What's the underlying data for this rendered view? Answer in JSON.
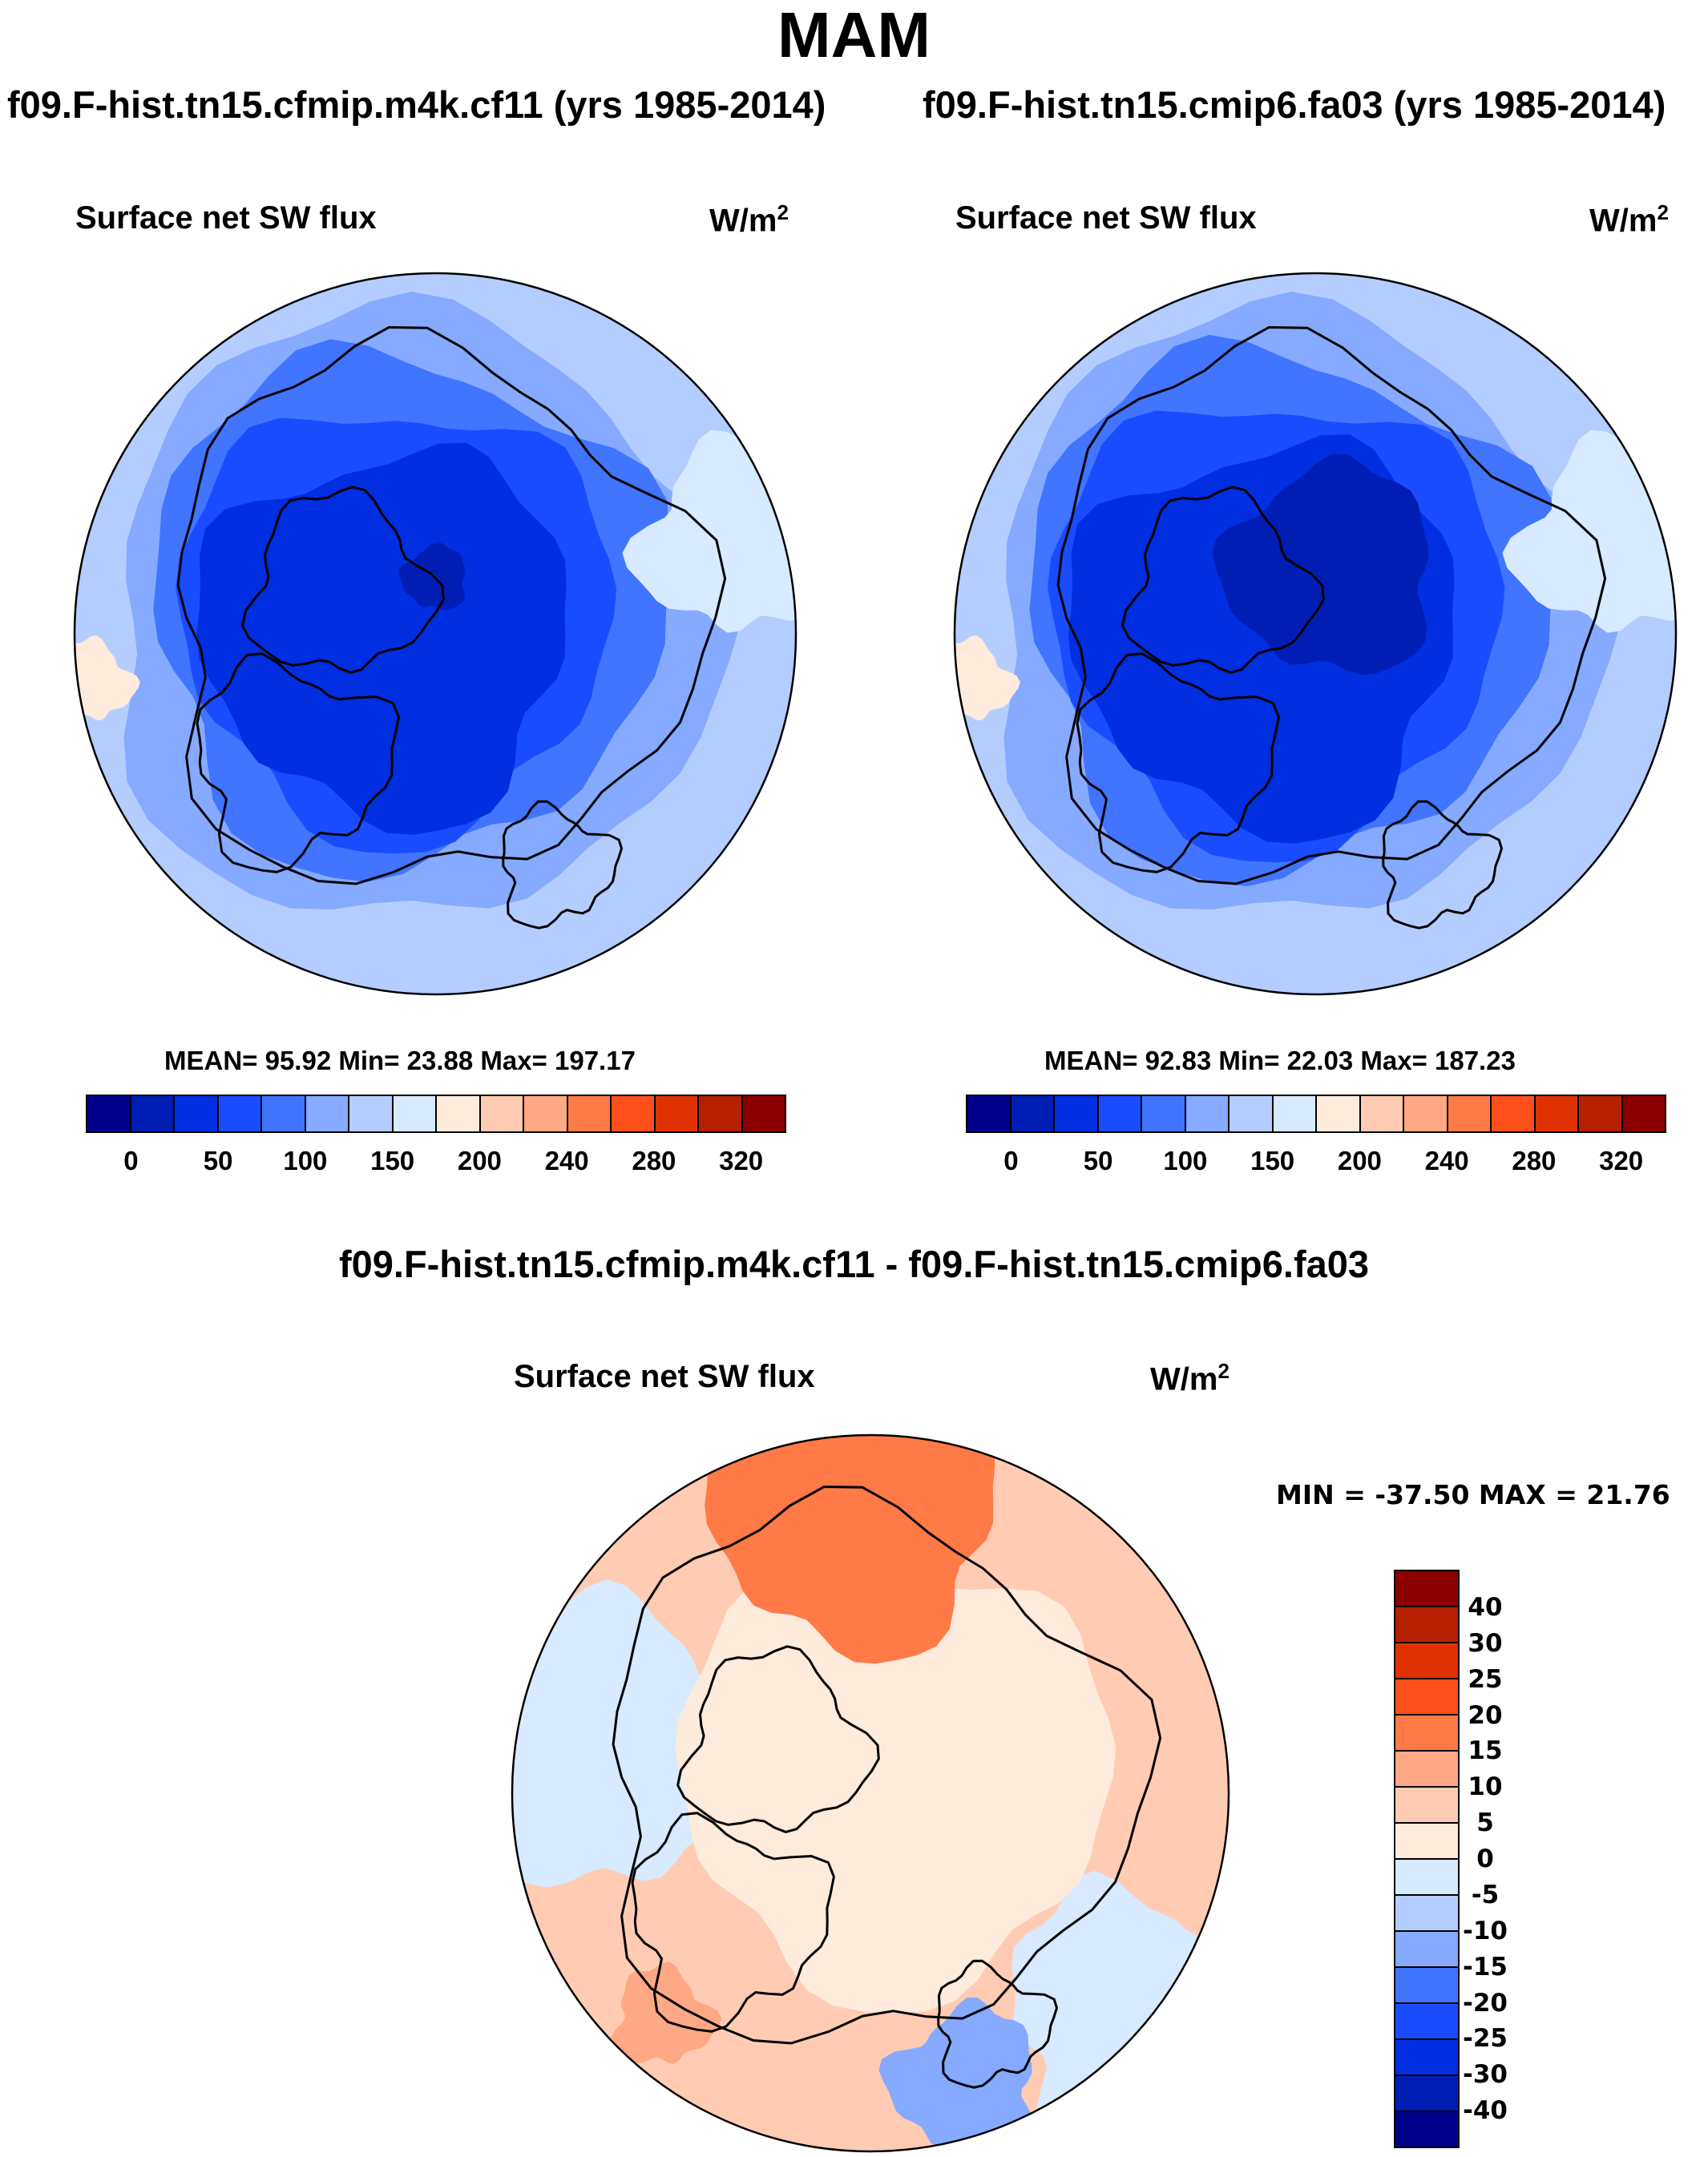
{
  "header": {
    "season": "MAM",
    "left_case": "f09.F-hist.tn15.cfmip.m4k.cf11 (yrs 1985-2014)",
    "right_case": "f09.F-hist.tn15.cmip6.fa03 (yrs 1985-2014)",
    "diff_title": "f09.F-hist.tn15.cfmip.m4k.cf11 - f09.F-hist.tn15.cmip6.fa03"
  },
  "chart_data": [
    {
      "type": "heatmap",
      "projection": "north-polar-stereographic",
      "title": "Surface net SW flux",
      "units": "W/m",
      "units_exp": "2",
      "stats_text": "MEAN=  95.92  Min=  23.88  Max= 197.17",
      "mean": 95.92,
      "min": 23.88,
      "max": 197.17,
      "colorbar": {
        "orientation": "horizontal",
        "tick_labels": [
          "0",
          "50",
          "100",
          "150",
          "200",
          "240",
          "280",
          "320"
        ],
        "colors": [
          "#00008a",
          "#001eb4",
          "#002ee0",
          "#1a4cff",
          "#4174ff",
          "#85aaff",
          "#b4cdff",
          "#d7eaff",
          "#ffebdb",
          "#ffccb3",
          "#ffa885",
          "#ff7a47",
          "#ff4f1a",
          "#e03200",
          "#b52000",
          "#8a0000"
        ]
      }
    },
    {
      "type": "heatmap",
      "projection": "north-polar-stereographic",
      "title": "Surface net SW flux",
      "units": "W/m",
      "units_exp": "2",
      "stats_text": "MEAN=  92.83  Min=  22.03  Max= 187.23",
      "mean": 92.83,
      "min": 22.03,
      "max": 187.23,
      "colorbar": {
        "orientation": "horizontal",
        "tick_labels": [
          "0",
          "50",
          "100",
          "150",
          "200",
          "240",
          "280",
          "320"
        ],
        "colors": [
          "#00008a",
          "#001eb4",
          "#002ee0",
          "#1a4cff",
          "#4174ff",
          "#85aaff",
          "#b4cdff",
          "#d7eaff",
          "#ffebdb",
          "#ffccb3",
          "#ffa885",
          "#ff7a47",
          "#ff4f1a",
          "#e03200",
          "#b52000",
          "#8a0000"
        ]
      }
    },
    {
      "type": "heatmap",
      "projection": "north-polar-stereographic",
      "title": "Surface net SW flux",
      "units": "W/m",
      "units_exp": "2",
      "stats_text": "MIN = -37.50 MAX =  21.76",
      "min": -37.5,
      "max": 21.76,
      "colorbar": {
        "orientation": "vertical",
        "tick_labels": [
          "40",
          "30",
          "25",
          "20",
          "15",
          "10",
          "5",
          "0",
          "-5",
          "-10",
          "-15",
          "-20",
          "-25",
          "-30",
          "-40"
        ],
        "colors": [
          "#8a0000",
          "#b52000",
          "#e03200",
          "#ff4f1a",
          "#ff7a47",
          "#ffa885",
          "#ffccb3",
          "#ffebdb",
          "#d7eaff",
          "#b4cdff",
          "#85aaff",
          "#4174ff",
          "#1a4cff",
          "#002ee0",
          "#001eb4",
          "#00008a"
        ]
      }
    }
  ]
}
